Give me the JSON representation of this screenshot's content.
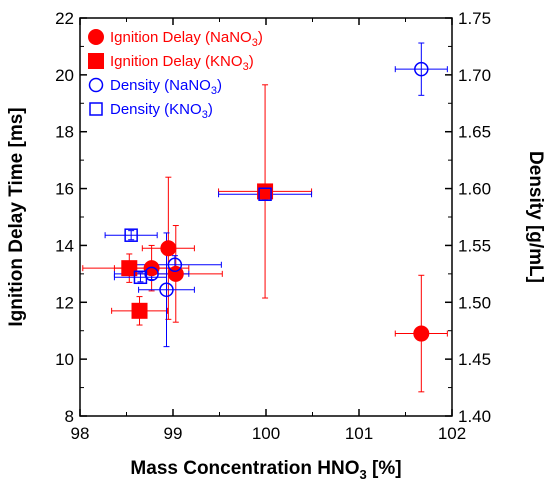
{
  "chart_data": {
    "type": "scatter",
    "title": "",
    "xlabel": "Mass Concentration HNO",
    "xlabel_sub": "3",
    "xlabel_suffix": " [%]",
    "ylabel": "Ignition Delay Time [ms]",
    "y2label": "Density [g/mL]",
    "xlim": [
      98,
      102
    ],
    "ylim": [
      8,
      22
    ],
    "y2lim": [
      1.4,
      1.75
    ],
    "x_ticks": [
      "98",
      "99",
      "100",
      "101",
      "102"
    ],
    "y_ticks": [
      "8",
      "10",
      "12",
      "14",
      "16",
      "18",
      "20",
      "22"
    ],
    "y2_ticks": [
      "1.40",
      "1.45",
      "1.50",
      "1.55",
      "1.60",
      "1.65",
      "1.70",
      "1.75"
    ],
    "grid": false,
    "legend_position": "top-left",
    "series": [
      {
        "name": "Ignition Delay (NaNO",
        "name_sub": "3",
        "name_suffix": ")",
        "axis": "left",
        "marker": "circle",
        "filled": true,
        "color": "#ff0000",
        "points": [
          {
            "x": 98.77,
            "y": 13.2,
            "xerr": 0.4,
            "yerr": 0.8
          },
          {
            "x": 98.95,
            "y": 13.9,
            "xerr": 0.28,
            "yerr": 2.5
          },
          {
            "x": 99.03,
            "y": 13.0,
            "xerr": 0.5,
            "yerr": 1.7
          },
          {
            "x": 101.67,
            "y": 10.9,
            "xerr": 0.28,
            "yerr": 2.05
          }
        ]
      },
      {
        "name": "Ignition Delay (KNO",
        "name_sub": "3",
        "name_suffix": ")",
        "axis": "left",
        "marker": "square",
        "filled": true,
        "color": "#ff0000",
        "points": [
          {
            "x": 98.53,
            "y": 13.2,
            "xerr": 0.5,
            "yerr": 0.5
          },
          {
            "x": 98.64,
            "y": 11.7,
            "xerr": 0.3,
            "yerr": 0.5
          },
          {
            "x": 99.99,
            "y": 15.9,
            "xerr": 0.5,
            "yerr": 3.75
          }
        ]
      },
      {
        "name": "Density (NaNO",
        "name_sub": "3",
        "name_suffix": ")",
        "axis": "right",
        "marker": "circle",
        "filled": false,
        "color": "#0000ff",
        "points": [
          {
            "x": 98.77,
            "y": 1.525,
            "xerr": 0.4,
            "yerr": 0.005
          },
          {
            "x": 98.93,
            "y": 1.511,
            "xerr": 0.3,
            "yerr": 0.05
          },
          {
            "x": 99.02,
            "y": 1.533,
            "xerr": 0.5,
            "yerr": 0.008
          },
          {
            "x": 101.67,
            "y": 1.705,
            "xerr": 0.28,
            "yerr": 0.023
          }
        ]
      },
      {
        "name": "Density (KNO",
        "name_sub": "3",
        "name_suffix": ")",
        "axis": "right",
        "marker": "square",
        "filled": false,
        "color": "#0000ff",
        "points": [
          {
            "x": 98.55,
            "y": 1.559,
            "xerr": 0.28,
            "yerr": 0.004
          },
          {
            "x": 98.65,
            "y": 1.522,
            "xerr": 0.28,
            "yerr": 0.004
          },
          {
            "x": 99.99,
            "y": 1.595,
            "xerr": 0.5,
            "yerr": 0.004
          }
        ]
      }
    ]
  }
}
